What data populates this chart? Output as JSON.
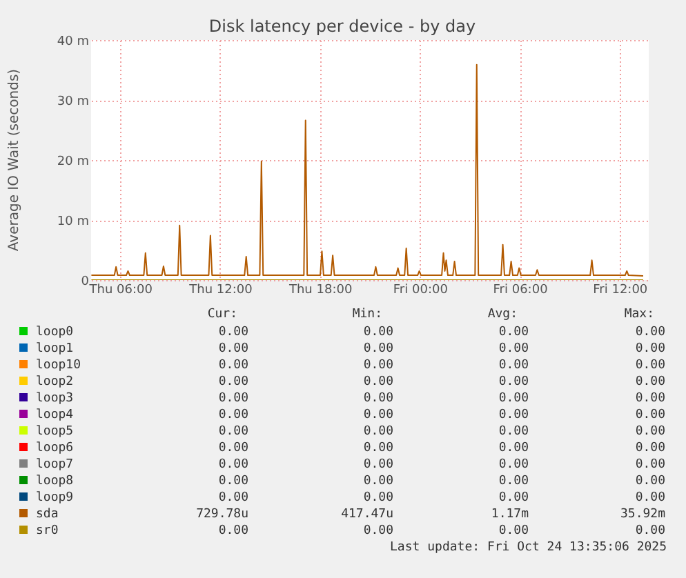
{
  "chart_data": {
    "type": "line",
    "title": "Disk latency per device - by day",
    "ylabel": "Average IO Wait (seconds)",
    "xlim": [
      "2025-10-23T04:15",
      "2025-10-24T13:45"
    ],
    "xticks": [
      {
        "value": "2025-10-23T06:00",
        "label": "Thu 06:00"
      },
      {
        "value": "2025-10-23T12:00",
        "label": "Thu 12:00"
      },
      {
        "value": "2025-10-23T18:00",
        "label": "Thu 18:00"
      },
      {
        "value": "2025-10-24T00:00",
        "label": "Fri 00:00"
      },
      {
        "value": "2025-10-24T06:00",
        "label": "Fri 06:00"
      },
      {
        "value": "2025-10-24T12:00",
        "label": "Fri 12:00"
      }
    ],
    "ylim": [
      0,
      40
    ],
    "yticks": [
      0,
      {
        "value": 10,
        "label": "10 m"
      },
      {
        "value": 20,
        "label": "20 m"
      },
      {
        "value": 30,
        "label": "30 m"
      },
      {
        "value": 40,
        "label": "40 m"
      }
    ],
    "grid": true,
    "legend": "bottom",
    "line_style": "solid",
    "marker": "none",
    "series": [
      {
        "name": "loop0",
        "color": "#00cc00"
      },
      {
        "name": "loop1",
        "color": "#0066b3"
      },
      {
        "name": "loop10",
        "color": "#ff8000"
      },
      {
        "name": "loop2",
        "color": "#ffcc00"
      },
      {
        "name": "loop3",
        "color": "#330099"
      },
      {
        "name": "loop4",
        "color": "#990099"
      },
      {
        "name": "loop5",
        "color": "#ccff00"
      },
      {
        "name": "loop6",
        "color": "#ff0000"
      },
      {
        "name": "loop7",
        "color": "#808080"
      },
      {
        "name": "loop8",
        "color": "#008f00"
      },
      {
        "name": "loop9",
        "color": "#00487d"
      },
      {
        "name": "sda",
        "color": "#b35a00",
        "x": [
          "2025-10-23T04:16",
          "2025-10-23T05:39",
          "2025-10-23T05:45",
          "2025-10-23T05:51",
          "2025-10-23T06:22",
          "2025-10-23T06:28",
          "2025-10-23T06:34",
          "2025-10-23T07:25",
          "2025-10-23T07:31",
          "2025-10-23T07:37",
          "2025-10-23T08:30",
          "2025-10-23T08:36",
          "2025-10-23T08:42",
          "2025-10-23T09:28",
          "2025-10-23T09:34",
          "2025-10-23T09:40",
          "2025-10-23T11:19",
          "2025-10-23T11:25",
          "2025-10-23T11:31",
          "2025-10-23T13:28",
          "2025-10-23T13:34",
          "2025-10-23T13:40",
          "2025-10-23T14:23",
          "2025-10-23T14:29",
          "2025-10-23T14:35",
          "2025-10-23T17:02",
          "2025-10-23T17:08",
          "2025-10-23T17:14",
          "2025-10-23T18:01",
          "2025-10-23T18:07",
          "2025-10-23T18:13",
          "2025-10-23T18:40",
          "2025-10-23T18:46",
          "2025-10-23T18:52",
          "2025-10-23T21:15",
          "2025-10-23T21:21",
          "2025-10-23T21:27",
          "2025-10-23T22:35",
          "2025-10-23T22:41",
          "2025-10-23T22:47",
          "2025-10-23T23:05",
          "2025-10-23T23:11",
          "2025-10-23T23:17",
          "2025-10-23T23:52",
          "2025-10-23T23:58",
          "2025-10-24T00:04",
          "2025-10-24T01:19",
          "2025-10-24T01:25",
          "2025-10-24T01:30",
          "2025-10-24T01:35",
          "2025-10-24T01:41",
          "2025-10-24T01:59",
          "2025-10-24T02:05",
          "2025-10-24T02:11",
          "2025-10-24T03:19",
          "2025-10-24T03:25",
          "2025-10-24T03:31",
          "2025-10-24T04:53",
          "2025-10-24T04:59",
          "2025-10-24T05:05",
          "2025-10-24T05:23",
          "2025-10-24T05:29",
          "2025-10-24T05:35",
          "2025-10-24T05:52",
          "2025-10-24T05:58",
          "2025-10-24T06:04",
          "2025-10-24T06:57",
          "2025-10-24T07:03",
          "2025-10-24T07:09",
          "2025-10-24T10:14",
          "2025-10-24T10:20",
          "2025-10-24T10:26",
          "2025-10-24T12:20",
          "2025-10-24T12:26",
          "2025-10-24T12:32",
          "2025-10-24T13:25"
        ],
        "values": [
          0.8,
          0.8,
          2.2,
          0.8,
          0.8,
          1.5,
          0.8,
          0.8,
          4.5,
          0.8,
          0.8,
          2.3,
          0.8,
          0.8,
          9.1,
          0.8,
          0.8,
          7.4,
          0.8,
          0.8,
          3.9,
          0.8,
          0.8,
          19.8,
          0.8,
          0.8,
          26.6,
          0.8,
          0.8,
          4.8,
          0.8,
          0.8,
          4.1,
          0.8,
          0.8,
          2.2,
          0.8,
          0.8,
          2.0,
          0.8,
          0.8,
          5.3,
          0.8,
          0.8,
          1.5,
          0.8,
          0.8,
          4.5,
          1.5,
          3.3,
          0.8,
          0.8,
          3.1,
          0.8,
          0.8,
          35.9,
          0.8,
          0.8,
          5.9,
          0.8,
          0.8,
          3.1,
          0.8,
          0.8,
          2.0,
          0.8,
          0.8,
          1.7,
          0.8,
          0.8,
          3.3,
          0.8,
          0.8,
          1.5,
          0.8,
          0.7
        ]
      },
      {
        "name": "sr0",
        "color": "#b38f00",
        "x": [
          "2025-10-23T04:16",
          "2025-10-24T13:25"
        ],
        "values": [
          0,
          0
        ]
      }
    ],
    "annotations": [
      "Cur: Min: Avg: Max:",
      "0.00 0.00 0.00 0.00",
      "0.00 0.00 0.00 0.00",
      "0.00 0.00 0.00 0.00",
      "0.00 0.00 0.00 0.00",
      "0.00 0.00 0.00 0.00",
      "0.00 0.00 0.00 0.00",
      "0.00 0.00 0.00 0.00",
      "0.00 0.00 0.00 0.00",
      "0.00 0.00 0.00 0.00",
      "0.00 0.00 0.00 0.00",
      "0.00 0.00 0.00 0.00",
      "729.78u 417.47u 1.17m 35.92m",
      "0.00 0.00 0.00 0.00",
      "Last update: Fri Oct 24 13:35:06 2025"
    ]
  }
}
